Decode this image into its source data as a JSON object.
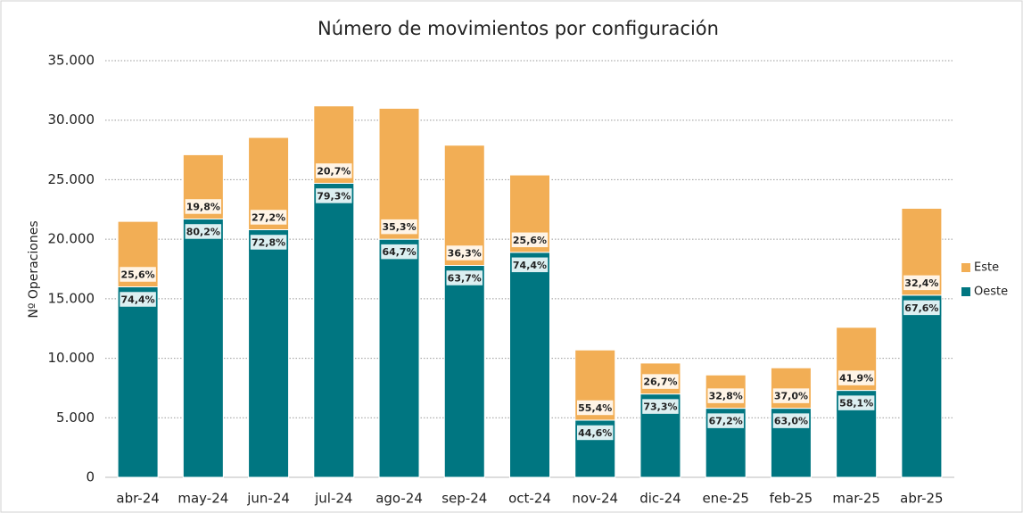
{
  "chart_data": {
    "type": "stacked_bar",
    "title": "Número de movimientos por configuración",
    "y_label": "Nº Operaciones",
    "categories": [
      "abr-24",
      "may-24",
      "jun-24",
      "jul-24",
      "ago-24",
      "sep-24",
      "oct-24",
      "nov-24",
      "dic-24",
      "ene-25",
      "feb-25",
      "mar-25",
      "abr-25"
    ],
    "series": [
      {
        "name": "Oeste",
        "color": "#007681",
        "values": [
          16000,
          21700,
          20800,
          24700,
          20000,
          17800,
          18900,
          4800,
          7000,
          5800,
          5800,
          7300,
          15300
        ],
        "share_labels": [
          "74,4%",
          "80,2%",
          "72,8%",
          "79,3%",
          "64,7%",
          "63,7%",
          "74,4%",
          "44,6%",
          "73,3%",
          "67,2%",
          "63,0%",
          "58,1%",
          "67,6%"
        ]
      },
      {
        "name": "Este",
        "color": "#f2ae55",
        "values": [
          5500,
          5400,
          7750,
          6500,
          11000,
          10100,
          6500,
          5900,
          2600,
          2800,
          3400,
          5300,
          7300
        ],
        "share_labels": [
          "25,6%",
          "19,8%",
          "27,2%",
          "20,7%",
          "35,3%",
          "36,3%",
          "25,6%",
          "55,4%",
          "26,7%",
          "32,8%",
          "37,0%",
          "41,9%",
          "32,4%"
        ]
      }
    ],
    "ylim": [
      0,
      35000
    ],
    "yticks": [
      0,
      {
        "value": 5000,
        "label": "5.000"
      },
      {
        "value": 10000,
        "label": "10.000"
      },
      {
        "value": 15000,
        "label": "15.000"
      },
      {
        "value": 20000,
        "label": "20.000"
      },
      {
        "value": 25000,
        "label": "25.000"
      },
      {
        "value": 30000,
        "label": "30.000"
      },
      {
        "value": 35000,
        "label": "35.000"
      }
    ],
    "grid": true,
    "legend": "right"
  }
}
